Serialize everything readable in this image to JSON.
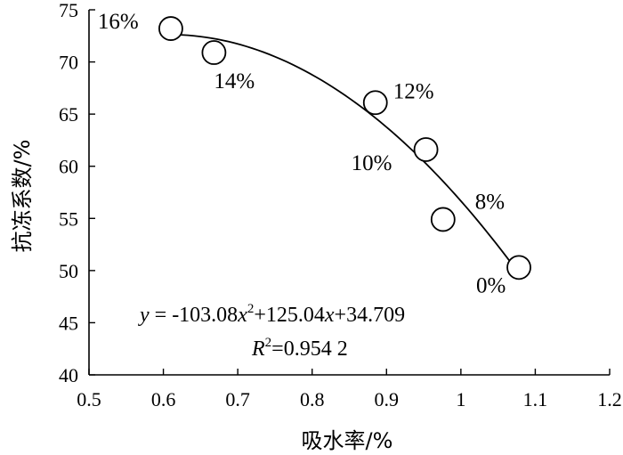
{
  "chart_data": {
    "type": "scatter",
    "xlabel": "吸水率/%",
    "ylabel": "抗冻系数/%",
    "xlim": [
      0.5,
      1.2
    ],
    "ylim": [
      40,
      75
    ],
    "x_ticks": [
      "0.5",
      "0.6",
      "0.7",
      "0.8",
      "0.9",
      "1",
      "1.1",
      "1.2"
    ],
    "y_ticks": [
      "40",
      "45",
      "50",
      "55",
      "60",
      "65",
      "70",
      "75"
    ],
    "grid": false,
    "points": [
      {
        "x": 0.61,
        "y": 73.2,
        "label": "16%"
      },
      {
        "x": 0.668,
        "y": 70.9,
        "label": "14%"
      },
      {
        "x": 0.885,
        "y": 66.1,
        "label": "12%"
      },
      {
        "x": 0.953,
        "y": 61.6,
        "label": "10%"
      },
      {
        "x": 0.976,
        "y": 54.9,
        "label": "8%"
      },
      {
        "x": 1.078,
        "y": 50.3,
        "label": "0%"
      }
    ],
    "fit": {
      "coefficients": [
        -103.08,
        125.04,
        34.709
      ],
      "x_range": [
        0.61,
        1.078
      ]
    },
    "equation": {
      "y_var": "y",
      "equals": " = -103.08",
      "x1": "x",
      "sup1": "2",
      "plus1": "+125.04",
      "x2": "x",
      "plus2": "+34.709",
      "r_var": "R",
      "r_sup": "2",
      "r_rest": "=0.954 2"
    }
  }
}
